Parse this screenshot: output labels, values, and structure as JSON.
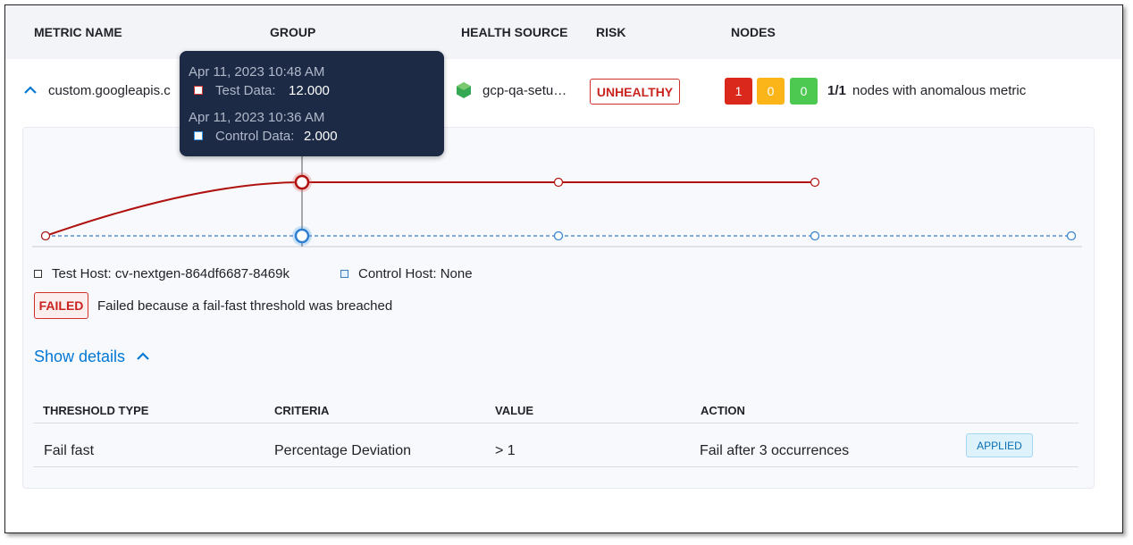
{
  "table_header": [
    "METRIC NAME",
    "GROUP",
    "HEALTH SOURCE",
    "RISK",
    "NODES"
  ],
  "row": {
    "metric": "custom.googleapis.c",
    "health_source": "gcp-qa-setu…",
    "risk": "UNHEALTHY",
    "node_counts": [
      1,
      0,
      0
    ],
    "node_ratio": "1/1",
    "node_text": "nodes with anomalous metric"
  },
  "tooltip": {
    "test_time": "Apr 11, 2023 10:48 AM",
    "test_label": "Test Data:",
    "test_value": "12.000",
    "control_time": "Apr 11, 2023 10:36 AM",
    "control_label": "Control Data:",
    "control_value": "2.000"
  },
  "chart": {
    "test_values": [
      2,
      12,
      12,
      12
    ],
    "control_values": [
      2,
      2,
      2,
      2,
      2
    ]
  },
  "legend": {
    "test_host": "Test Host: cv-nextgen-864df6687-8469k",
    "control_host": "Control Host: None"
  },
  "status": {
    "badge": "FAILED",
    "reason": "Failed because a fail-fast threshold was breached"
  },
  "show_details": "Show details",
  "thresholds": {
    "headers": [
      "THRESHOLD TYPE",
      "CRITERIA",
      "VALUE",
      "ACTION"
    ],
    "rows": [
      [
        "Fail fast",
        "Percentage Deviation",
        "> 1",
        "Fail after 3 occurrences",
        "APPLIED"
      ]
    ]
  }
}
